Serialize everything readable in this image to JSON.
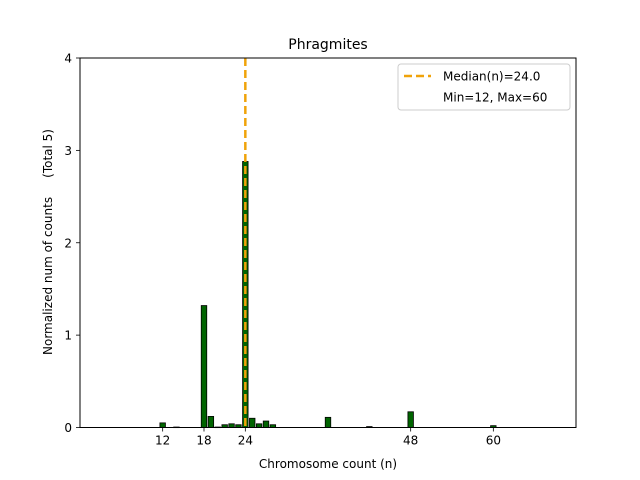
{
  "chart_data": {
    "type": "bar",
    "title": "Phragmites",
    "xlabel": "Chromosome count (n)",
    "ylabel": "Normalized num of counts     (Total 5)",
    "xlim": [
      0,
      72
    ],
    "ylim": [
      0,
      4
    ],
    "bar_width": 0.8,
    "x_ticks": [
      12,
      18,
      24,
      48,
      60
    ],
    "y_ticks": [
      0,
      1,
      2,
      3,
      4
    ],
    "bar_color": "#006400",
    "bar_edge_color": "#000000",
    "bars": [
      {
        "x": 12,
        "value": 0.05
      },
      {
        "x": 14,
        "value": 0.005
      },
      {
        "x": 18,
        "value": 1.32
      },
      {
        "x": 19,
        "value": 0.12
      },
      {
        "x": 20,
        "value": 0.005
      },
      {
        "x": 21,
        "value": 0.03
      },
      {
        "x": 22,
        "value": 0.04
      },
      {
        "x": 23,
        "value": 0.03
      },
      {
        "x": 24,
        "value": 2.88
      },
      {
        "x": 25,
        "value": 0.1
      },
      {
        "x": 26,
        "value": 0.04
      },
      {
        "x": 27,
        "value": 0.07
      },
      {
        "x": 28,
        "value": 0.03
      },
      {
        "x": 36,
        "value": 0.11
      },
      {
        "x": 42,
        "value": 0.01
      },
      {
        "x": 48,
        "value": 0.17
      },
      {
        "x": 60,
        "value": 0.02
      }
    ],
    "median": 24.0,
    "median_color": "#f0a30a",
    "legend": {
      "position": "top-right",
      "entries": [
        "Median(n)=24.0",
        "Min=12, Max=60"
      ]
    }
  }
}
